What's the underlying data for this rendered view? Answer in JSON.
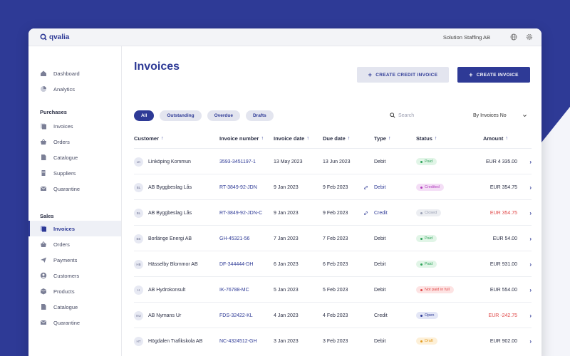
{
  "app": {
    "logo_text": "qvalia",
    "company": "Solution Staffing AB"
  },
  "sidebar": {
    "top_items": [
      {
        "label": "Dashboard",
        "icon": "home-icon"
      },
      {
        "label": "Analytics",
        "icon": "pie-chart-icon"
      }
    ],
    "purchases": {
      "title": "Purchases",
      "items": [
        {
          "label": "Invoices",
          "icon": "invoice-icon"
        },
        {
          "label": "Orders",
          "icon": "basket-icon"
        },
        {
          "label": "Catalogue",
          "icon": "document-icon"
        },
        {
          "label": "Suppliers",
          "icon": "building-icon"
        },
        {
          "label": "Quarantine",
          "icon": "quarantine-icon"
        }
      ]
    },
    "sales": {
      "title": "Sales",
      "items": [
        {
          "label": "Invoices",
          "icon": "invoice-icon",
          "active": true
        },
        {
          "label": "Orders",
          "icon": "basket-icon"
        },
        {
          "label": "Payments",
          "icon": "send-icon"
        },
        {
          "label": "Customers",
          "icon": "user-icon"
        },
        {
          "label": "Products",
          "icon": "box-icon"
        },
        {
          "label": "Catalogue",
          "icon": "document-icon"
        },
        {
          "label": "Quarantine",
          "icon": "quarantine-icon"
        }
      ]
    }
  },
  "main": {
    "title": "Invoices",
    "create_credit_label": "CREATE CREDIT INVOICE",
    "create_invoice_label": "CREATE INVOICE",
    "filters": [
      "All",
      "Outstanding",
      "Overdue",
      "Drafts"
    ],
    "search_placeholder": "Search",
    "sort_value": "By Invoices No"
  },
  "table": {
    "headers": {
      "customer": "Customer",
      "invoice_number": "Invoice number",
      "invoice_date": "Invoice date",
      "due_date": "Due date",
      "type": "Type",
      "status": "Status",
      "amount": "Amount"
    },
    "rows": [
      {
        "initials": "LK",
        "customer": "Linköping Kommun",
        "number": "3593-3451197-1",
        "invoice_date": "13 May 2023",
        "due_date": "13 Jun 2023",
        "type": "Debit",
        "linked": false,
        "status": "Paid",
        "status_kind": "paid",
        "amount": "EUR 4 335.00",
        "negative": false
      },
      {
        "initials": "BL",
        "customer": "AB Byggbeslag Lås",
        "number": "RT-3849-92-JDN",
        "invoice_date": "9 Jan 2023",
        "due_date": "9 Feb 2023",
        "type": "Debit",
        "linked": true,
        "status": "Credited",
        "status_kind": "credited",
        "amount": "EUR 354.75",
        "negative": false
      },
      {
        "initials": "BL",
        "customer": "AB Byggbeslag Lås",
        "number": "RT-3849-92-JDN-C",
        "invoice_date": "9 Jan 2023",
        "due_date": "9 Feb 2023",
        "type": "Credit",
        "linked": true,
        "status": "Closed",
        "status_kind": "closed",
        "amount": "EUR 354.75",
        "negative": true
      },
      {
        "initials": "BE",
        "customer": "Borlänge Energi AB",
        "number": "GH-45321-56",
        "invoice_date": "7 Jan 2023",
        "due_date": "7 Feb 2023",
        "type": "Debit",
        "linked": false,
        "status": "Paid",
        "status_kind": "paid",
        "amount": "EUR 54.00",
        "negative": false
      },
      {
        "initials": "HB",
        "customer": "Hässelby Blommor AB",
        "number": "DF-344444-DH",
        "invoice_date": "6 Jan 2023",
        "due_date": "6 Feb 2023",
        "type": "Debit",
        "linked": false,
        "status": "Paid",
        "status_kind": "paid",
        "amount": "EUR 931.00",
        "negative": false
      },
      {
        "initials": "H",
        "customer": "AB Hydrokonsult",
        "number": "IK-76788-MC",
        "invoice_date": "5 Jan 2023",
        "due_date": "5 Feb 2023",
        "type": "Debit",
        "linked": false,
        "status": "Not paid in full",
        "status_kind": "notpaid",
        "amount": "EUR 554.00",
        "negative": false
      },
      {
        "initials": "NU",
        "customer": "AB Nymans Ur",
        "number": "FDS-32422-KL",
        "invoice_date": "4 Jan 2023",
        "due_date": "4 Feb 2023",
        "type": "Credit",
        "linked": false,
        "status": "Open",
        "status_kind": "open",
        "amount": "EUR -242.75",
        "negative": true
      },
      {
        "initials": "HT",
        "customer": "Högdalen Trafikskola AB",
        "number": "NC-4324512-GH",
        "invoice_date": "3 Jan 2023",
        "due_date": "3 Feb 2023",
        "type": "Debit",
        "linked": false,
        "status": "Draft",
        "status_kind": "draft",
        "amount": "EUR 902.00",
        "negative": false
      }
    ]
  },
  "colors": {
    "brand": "#2e3a96",
    "paid_bg": "#e1f5e7",
    "paid_dot": "#2fa35a",
    "credited_bg": "#f4def6",
    "credited_dot": "#b03dbc",
    "closed_bg": "#eceef2",
    "closed_dot": "#9aa0b4",
    "notpaid_bg": "#fde3e3",
    "notpaid_dot": "#e04848",
    "open_bg": "#e3e6f6",
    "open_dot": "#2e3a96",
    "draft_bg": "#fdf0d8",
    "draft_dot": "#e39a1d"
  }
}
